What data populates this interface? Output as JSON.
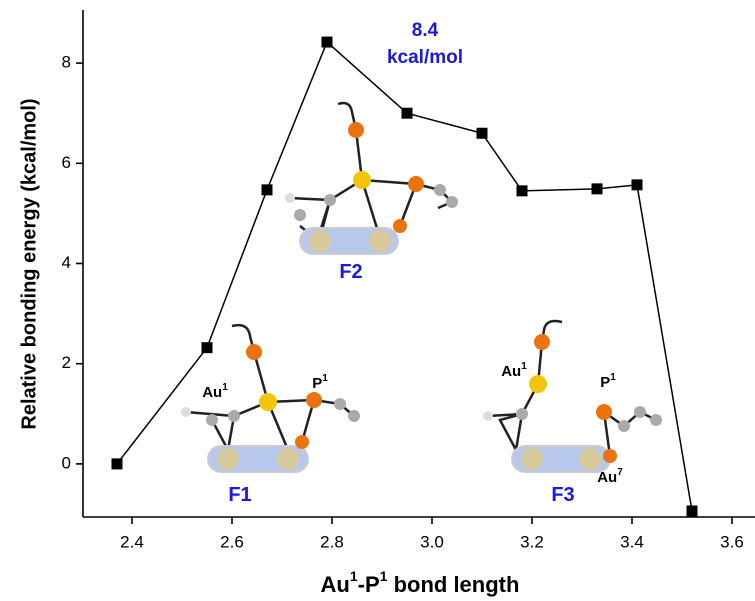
{
  "chart_data": {
    "type": "line",
    "y_label": "Relative bonding energy (kcal/mol)",
    "x_label_parts": [
      "Au",
      "1",
      "-P",
      "1",
      " bond length"
    ],
    "x": [
      2.37,
      2.55,
      2.67,
      2.79,
      2.95,
      3.1,
      3.18,
      3.33,
      3.41,
      3.52
    ],
    "series": [
      {
        "color": "#000000",
        "values": [
          0,
          2.32,
          5.47,
          8.42,
          7.0,
          6.6,
          5.45,
          5.49,
          5.57,
          -0.94
        ]
      }
    ],
    "xlim": [
      2.302,
      3.646
    ],
    "xticks": [
      {
        "value": 2.4,
        "label": "2.4"
      },
      {
        "value": 2.6,
        "label": "2.6"
      },
      {
        "value": 2.8,
        "label": "2.8"
      },
      {
        "value": 3.0,
        "label": "3.0"
      },
      {
        "value": 3.2,
        "label": "3.2"
      },
      {
        "value": 3.4,
        "label": "3.4"
      },
      {
        "value": 3.6,
        "label": "3.6"
      }
    ],
    "ylim": [
      -1.06,
      9.06
    ],
    "yticks": [
      0,
      2,
      4,
      6,
      8
    ],
    "annotations": [
      {
        "text": "8.4",
        "color": "#1a1adc"
      },
      {
        "text": "kcal/mol",
        "color": "#1a1adc"
      },
      {
        "text": "F2",
        "color": "#1a1adc"
      },
      {
        "text": "F1",
        "color": "#1a1adc"
      },
      {
        "text": "F3",
        "color": "#1a1adc"
      },
      {
        "text": "Au",
        "sup": "1",
        "color": "#000000"
      },
      {
        "text": "P",
        "sup": "1",
        "color": "#000000"
      },
      {
        "text": "Au",
        "sup": "1",
        "color": "#000000"
      },
      {
        "text": "P",
        "sup": "1",
        "color": "#000000"
      },
      {
        "text": "Au",
        "sup": "7",
        "color": "#000000"
      }
    ]
  }
}
